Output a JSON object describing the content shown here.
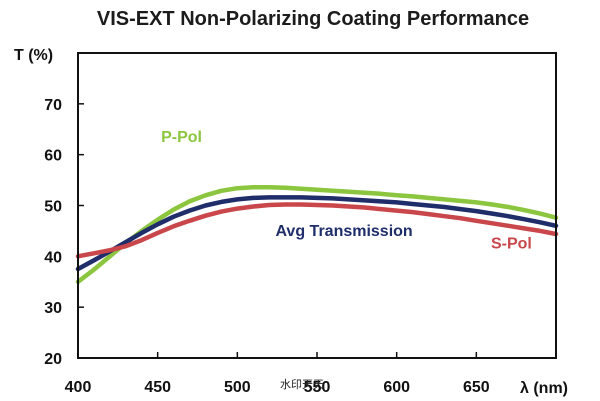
{
  "chart_data": {
    "type": "line",
    "title": "VIS-EXT Non-Polarizing Coating Performance",
    "xlabel": "λ (nm)",
    "ylabel": "T (%)",
    "xlim": [
      400,
      700
    ],
    "ylim": [
      20,
      80
    ],
    "xticks": [
      "400",
      "450",
      "500",
      "550",
      "600",
      "650"
    ],
    "yticks": [
      "20",
      "30",
      "40",
      "50",
      "60",
      "70"
    ],
    "grid": false,
    "series": [
      {
        "name": "P-Pol",
        "color": "#8cc63f",
        "x": [
          400,
          410,
          420,
          430,
          440,
          450,
          460,
          470,
          480,
          490,
          500,
          510,
          520,
          530,
          540,
          550,
          560,
          570,
          580,
          590,
          600,
          610,
          620,
          630,
          640,
          650,
          660,
          670,
          680,
          690,
          700
        ],
        "y": [
          35.0,
          37.4,
          40.0,
          42.6,
          45.0,
          47.2,
          49.2,
          50.8,
          52.0,
          52.9,
          53.4,
          53.6,
          53.6,
          53.5,
          53.3,
          53.1,
          52.9,
          52.7,
          52.5,
          52.3,
          52.0,
          51.8,
          51.5,
          51.2,
          50.9,
          50.6,
          50.2,
          49.7,
          49.1,
          48.4,
          47.6
        ]
      },
      {
        "name": "Avg Transmission",
        "color": "#1f2d6b",
        "x": [
          400,
          410,
          420,
          430,
          440,
          450,
          460,
          470,
          480,
          490,
          500,
          510,
          520,
          530,
          540,
          550,
          560,
          570,
          580,
          590,
          600,
          610,
          620,
          630,
          640,
          650,
          660,
          670,
          680,
          690,
          700
        ],
        "y": [
          37.5,
          39.2,
          41.0,
          42.8,
          44.6,
          46.3,
          47.8,
          49.0,
          50.0,
          50.7,
          51.2,
          51.5,
          51.6,
          51.6,
          51.6,
          51.5,
          51.4,
          51.2,
          51.0,
          50.8,
          50.6,
          50.3,
          50.0,
          49.7,
          49.3,
          48.9,
          48.4,
          47.9,
          47.3,
          46.7,
          46.0
        ]
      },
      {
        "name": "S-Pol",
        "color": "#c9474b",
        "x": [
          400,
          410,
          420,
          430,
          440,
          450,
          460,
          470,
          480,
          490,
          500,
          510,
          520,
          530,
          540,
          550,
          560,
          570,
          580,
          590,
          600,
          610,
          620,
          630,
          640,
          650,
          660,
          670,
          680,
          690,
          700
        ],
        "y": [
          40.0,
          40.6,
          41.2,
          42.0,
          43.2,
          44.6,
          45.9,
          47.0,
          48.0,
          48.8,
          49.4,
          49.8,
          50.1,
          50.2,
          50.2,
          50.1,
          50.0,
          49.8,
          49.6,
          49.3,
          49.0,
          48.7,
          48.3,
          47.9,
          47.5,
          47.0,
          46.5,
          46.0,
          45.5,
          45.0,
          44.4
        ]
      }
    ],
    "annotations": [
      {
        "text": "P-Pol",
        "x": 465,
        "y": 62.5,
        "color": "#8cc63f"
      },
      {
        "text": "Avg Transmission",
        "x": 567,
        "y": 44,
        "color": "#1f2d6b"
      },
      {
        "text": "S-Pol",
        "x": 672,
        "y": 41.5,
        "color": "#c9474b"
      }
    ]
  },
  "watermark": "水印天天"
}
